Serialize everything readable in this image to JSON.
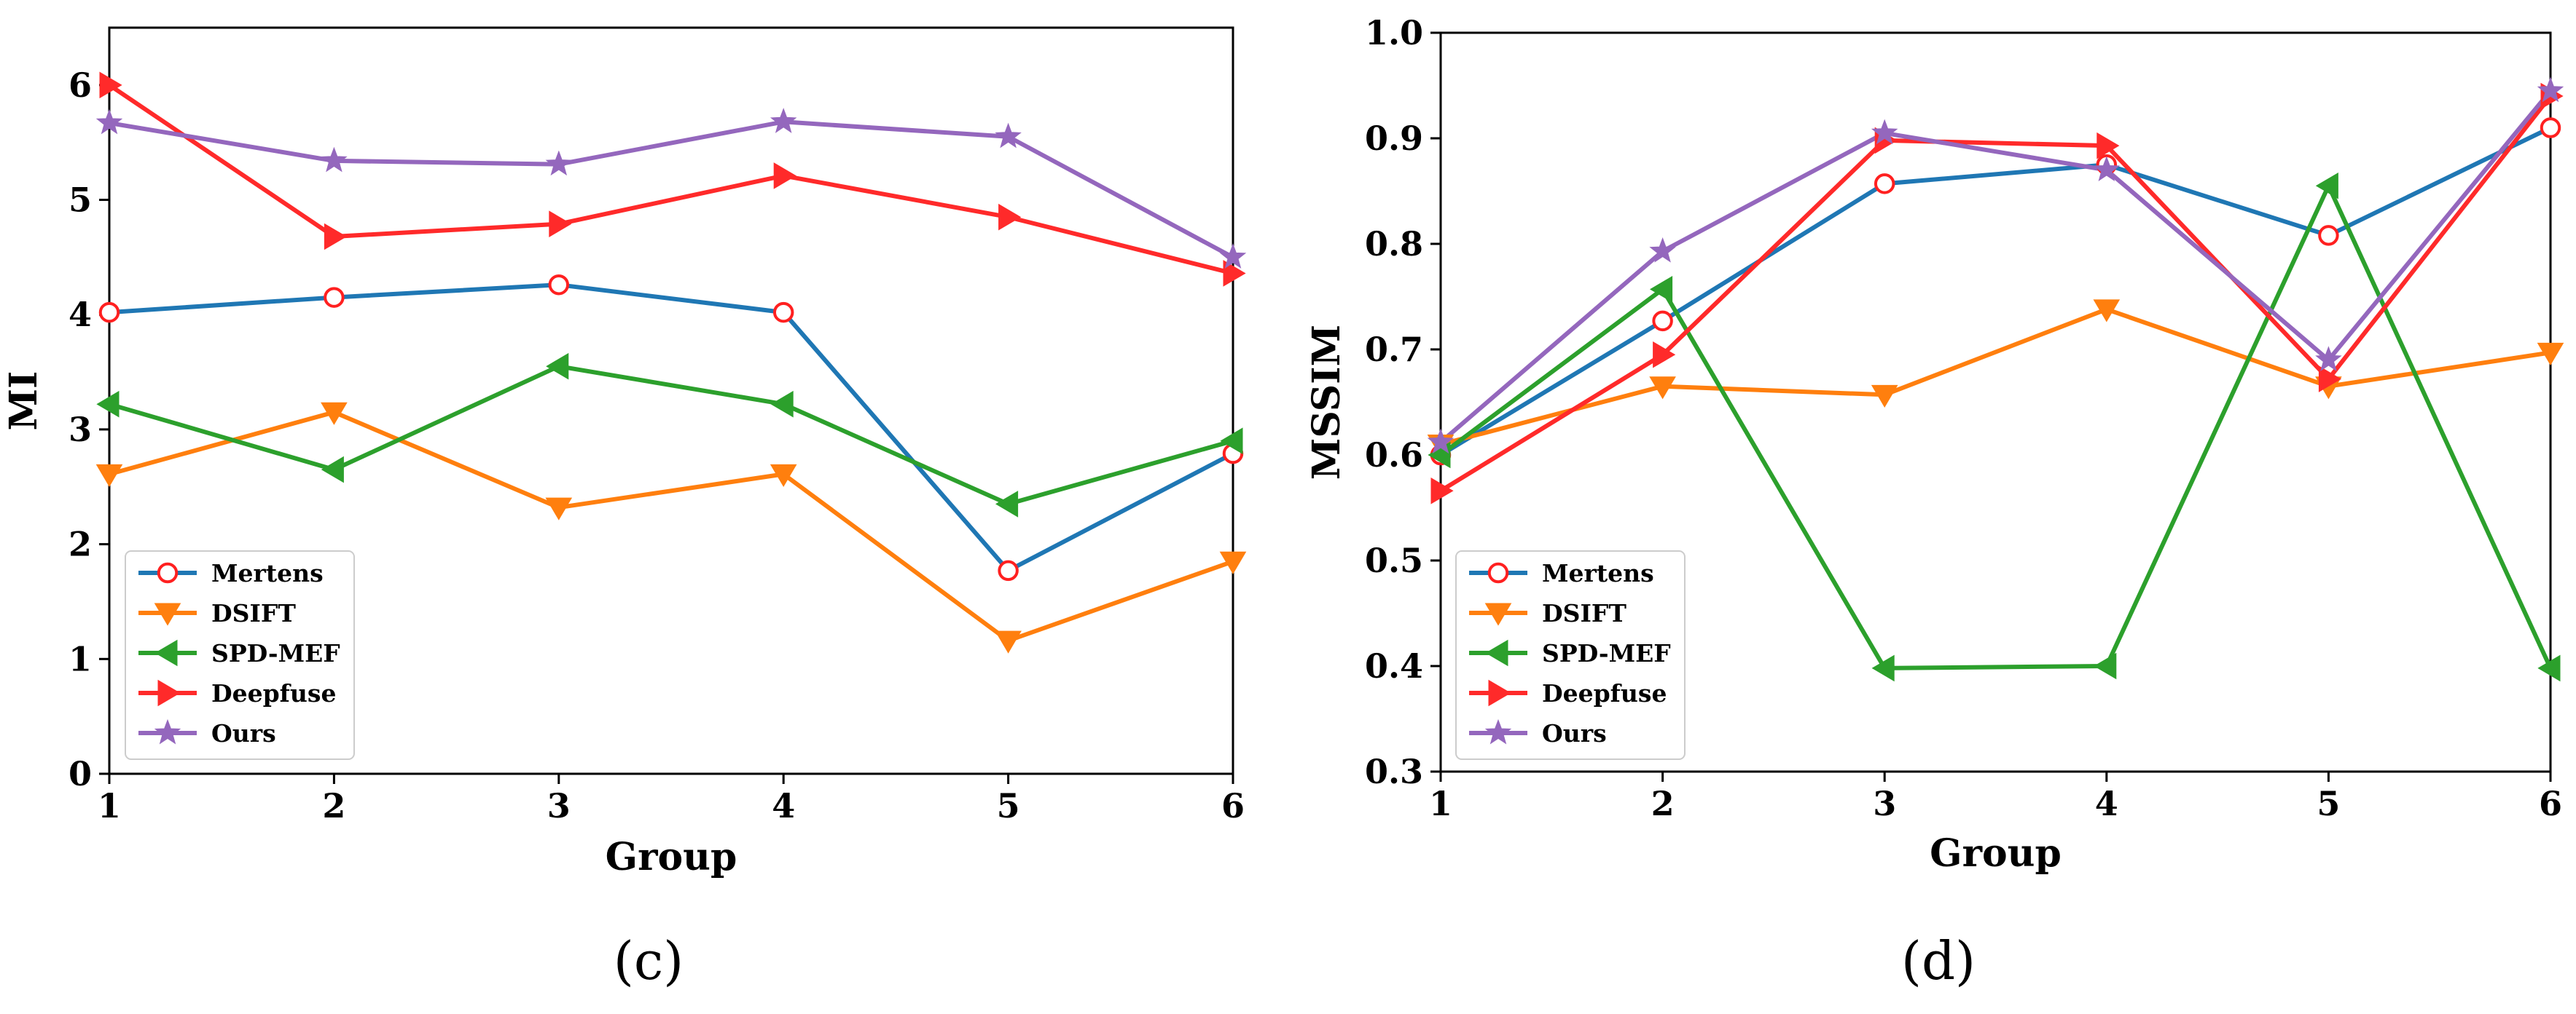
{
  "chart_data": [
    {
      "type": "line",
      "panel": "c",
      "caption": "(c)",
      "xlabel": "Group",
      "ylabel": "MI",
      "x": [
        1,
        2,
        3,
        4,
        5,
        6
      ],
      "xticks": [
        "1",
        "2",
        "3",
        "4",
        "5",
        "6"
      ],
      "yticks": [
        "0",
        "1",
        "2",
        "3",
        "4",
        "5",
        "6"
      ],
      "xlim": [
        1,
        6
      ],
      "ylim": [
        0,
        6.5
      ],
      "grid": false,
      "legend_position": "lower-left",
      "series": [
        {
          "name": "Mertens",
          "color": "#1f77b4",
          "marker": "circle-open",
          "values": [
            4.02,
            4.15,
            4.26,
            4.02,
            1.77,
            2.79
          ]
        },
        {
          "name": "DSIFT",
          "color": "#ff7f0e",
          "marker": "triangle-down",
          "values": [
            2.61,
            3.15,
            2.32,
            2.61,
            1.16,
            1.85
          ]
        },
        {
          "name": "SPD-MEF",
          "color": "#2ca02c",
          "marker": "triangle-left",
          "values": [
            3.22,
            2.65,
            3.55,
            3.22,
            2.35,
            2.9
          ]
        },
        {
          "name": "Deepfuse",
          "color": "#ff2a2a",
          "marker": "triangle-right",
          "values": [
            6.0,
            4.68,
            4.79,
            5.21,
            4.85,
            4.36
          ]
        },
        {
          "name": "Ours",
          "color": "#9467bd",
          "marker": "star",
          "values": [
            5.67,
            5.34,
            5.31,
            5.68,
            5.55,
            4.5
          ]
        }
      ]
    },
    {
      "type": "line",
      "panel": "d",
      "caption": "(d)",
      "xlabel": "Group",
      "ylabel": "MSSIM",
      "x": [
        1,
        2,
        3,
        4,
        5,
        6
      ],
      "xticks": [
        "1",
        "2",
        "3",
        "4",
        "5",
        "6"
      ],
      "yticks": [
        "0.3",
        "0.4",
        "0.5",
        "0.6",
        "0.7",
        "0.8",
        "0.9",
        "1.0"
      ],
      "xlim": [
        1,
        6
      ],
      "ylim": [
        0.3,
        1.0
      ],
      "grid": false,
      "legend_position": "lower-left",
      "series": [
        {
          "name": "Mertens",
          "color": "#1f77b4",
          "marker": "circle-open",
          "values": [
            0.6,
            0.727,
            0.857,
            0.875,
            0.808,
            0.91
          ]
        },
        {
          "name": "DSIFT",
          "color": "#ff7f0e",
          "marker": "triangle-down",
          "values": [
            0.61,
            0.665,
            0.657,
            0.738,
            0.665,
            0.697
          ]
        },
        {
          "name": "SPD-MEF",
          "color": "#2ca02c",
          "marker": "triangle-left",
          "values": [
            0.6,
            0.757,
            0.398,
            0.4,
            0.855,
            0.398
          ]
        },
        {
          "name": "Deepfuse",
          "color": "#ff2a2a",
          "marker": "triangle-right",
          "values": [
            0.566,
            0.695,
            0.898,
            0.893,
            0.672,
            0.94
          ]
        },
        {
          "name": "Ours",
          "color": "#9467bd",
          "marker": "star",
          "values": [
            0.612,
            0.793,
            0.905,
            0.87,
            0.69,
            0.945
          ]
        }
      ]
    }
  ]
}
